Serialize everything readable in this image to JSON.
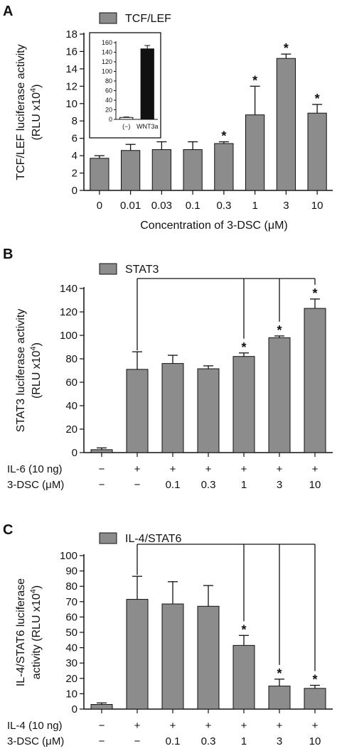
{
  "colors": {
    "bar": "#8c8c8c",
    "bar_dark": "#111111",
    "axis": "#111111"
  },
  "chart_data": [
    {
      "panel": "A",
      "type": "bar",
      "legend": "TCF/LEF",
      "ylabel_line1": "TCF/LEF luciferase activity",
      "ylabel_line2": "(RLU x10",
      "ylabel_sup": "4",
      "ylabel_end": ")",
      "xlabel": "Concentration of 3-DSC (μM)",
      "ylim": [
        0,
        18
      ],
      "yticks": [
        0,
        2,
        4,
        6,
        8,
        10,
        12,
        14,
        16,
        18
      ],
      "categories": [
        "0",
        "0.01",
        "0.03",
        "0.1",
        "0.3",
        "1",
        "3",
        "10"
      ],
      "values": [
        3.7,
        4.6,
        4.7,
        4.7,
        5.4,
        8.7,
        15.2,
        8.9
      ],
      "errors": [
        0.3,
        0.7,
        0.9,
        0.9,
        0.2,
        3.3,
        0.5,
        1.0
      ],
      "significant": [
        false,
        false,
        false,
        false,
        true,
        true,
        true,
        true
      ],
      "inset": {
        "type": "bar",
        "ylim": [
          0,
          160
        ],
        "yticks": [
          0,
          20,
          40,
          60,
          80,
          100,
          120,
          140,
          160
        ],
        "categories": [
          "(−)",
          "WNT3a"
        ],
        "values": [
          4,
          147
        ],
        "errors": [
          1,
          7
        ]
      }
    },
    {
      "panel": "B",
      "type": "bar",
      "legend": "STAT3",
      "ylabel_line1": "STAT3 luciferase activity",
      "ylabel_line2": "(RLU x10",
      "ylabel_sup": "4",
      "ylabel_end": ")",
      "ylim": [
        0,
        140
      ],
      "yticks": [
        0,
        20,
        40,
        60,
        80,
        100,
        120,
        140
      ],
      "row1_label": "IL-6 (10 ng)",
      "row1": [
        "−",
        "+",
        "+",
        "+",
        "+",
        "+",
        "+"
      ],
      "row2_label": "3-DSC (μM)",
      "row2": [
        "−",
        "−",
        "0.1",
        "0.3",
        "1",
        "3",
        "10"
      ],
      "values": [
        2.5,
        71,
        76,
        71.5,
        82,
        98,
        123
      ],
      "errors": [
        1.5,
        15,
        7,
        2.5,
        3,
        1.5,
        8
      ],
      "significant": [
        false,
        false,
        false,
        false,
        true,
        true,
        true
      ]
    },
    {
      "panel": "C",
      "type": "bar",
      "legend": "IL-4/STAT6",
      "ylabel_line1": "IL-4/STAT6 luciferase",
      "ylabel_line2": "activity (RLU x10",
      "ylabel_sup": "4",
      "ylabel_end": ")",
      "ylim": [
        0,
        100
      ],
      "yticks": [
        0,
        10,
        20,
        30,
        40,
        50,
        60,
        70,
        80,
        90,
        100
      ],
      "row1_label": "IL-4 (10 ng)",
      "row1": [
        "−",
        "+",
        "+",
        "+",
        "+",
        "+",
        "+"
      ],
      "row2_label": "3-DSC (μM)",
      "row2": [
        "−",
        "−",
        "0.1",
        "0.3",
        "1",
        "3",
        "10"
      ],
      "values": [
        3,
        71.5,
        68.5,
        67,
        41.5,
        15,
        13.5
      ],
      "errors": [
        1,
        15,
        14.5,
        13.5,
        6.5,
        4.5,
        2
      ],
      "significant": [
        false,
        false,
        false,
        false,
        true,
        true,
        true
      ]
    }
  ]
}
